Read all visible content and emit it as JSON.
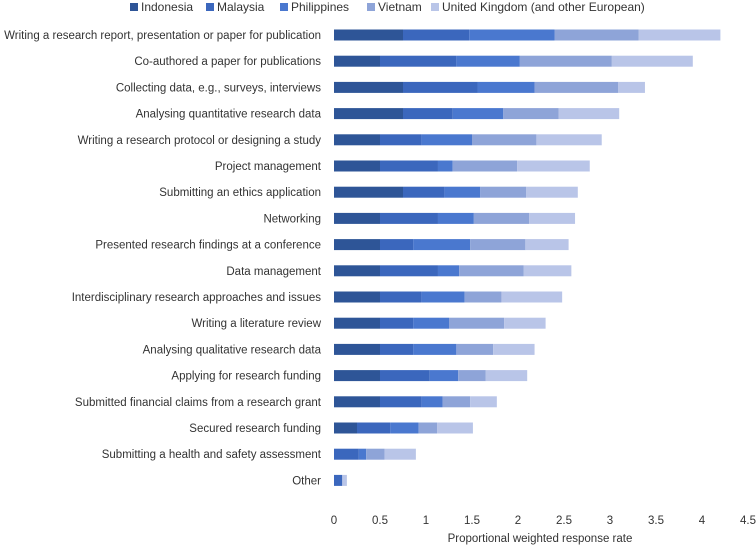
{
  "chart_data": {
    "type": "bar",
    "orientation": "horizontal",
    "stacked": true,
    "title": "",
    "xlabel": "Proportional weighted response rate",
    "ylabel": "",
    "xlim": [
      0,
      4.5
    ],
    "xticks": [
      "0",
      "0.5",
      "1",
      "1.5",
      "2",
      "2.5",
      "3",
      "3.5",
      "4",
      "4.5"
    ],
    "grid": false,
    "legend_position": "top",
    "categories": [
      "Writing a research report, presentation or paper for publication",
      "Co-authored a paper for publications",
      "Collecting data, e.g., surveys, interviews",
      "Analysing quantitative research data",
      "Writing a research protocol or designing a study",
      "Project management",
      "Submitting an ethics application",
      "Networking",
      "Presented research findings at a conference",
      "Data management",
      "Interdisciplinary research approaches and issues",
      "Writing a literature review",
      "Analysing qualitative research data",
      "Applying for research funding",
      "Submitted financial claims from a research grant",
      "Secured research funding",
      "Submitting a health and safety assessment",
      "Other"
    ],
    "series": [
      {
        "name": "Indonesia",
        "color": "#2e5597",
        "values": [
          0.75,
          0.5,
          0.75,
          0.75,
          0.5,
          0.5,
          0.75,
          0.5,
          0.5,
          0.5,
          0.5,
          0.5,
          0.5,
          0.5,
          0.5,
          0.25,
          0.0,
          0.0
        ]
      },
      {
        "name": "Malaysia",
        "color": "#3b67bd",
        "values": [
          0.72,
          0.83,
          0.81,
          0.54,
          0.45,
          0.63,
          0.45,
          0.63,
          0.36,
          0.63,
          0.45,
          0.36,
          0.36,
          0.54,
          0.45,
          0.36,
          0.27,
          0.09
        ]
      },
      {
        "name": "Philippines",
        "color": "#4a78cf",
        "values": [
          0.93,
          0.69,
          0.62,
          0.55,
          0.55,
          0.16,
          0.39,
          0.39,
          0.62,
          0.23,
          0.47,
          0.39,
          0.47,
          0.31,
          0.23,
          0.31,
          0.08,
          0.0
        ]
      },
      {
        "name": "Vietnam",
        "color": "#8ea4d8",
        "values": [
          0.91,
          1.0,
          0.91,
          0.6,
          0.7,
          0.7,
          0.5,
          0.6,
          0.6,
          0.7,
          0.4,
          0.6,
          0.4,
          0.3,
          0.3,
          0.2,
          0.2,
          0.0
        ]
      },
      {
        "name": "United Kingdom (and other European)",
        "color": "#b9c5e8",
        "values": [
          0.89,
          0.88,
          0.29,
          0.66,
          0.71,
          0.79,
          0.56,
          0.5,
          0.47,
          0.52,
          0.66,
          0.45,
          0.45,
          0.45,
          0.29,
          0.39,
          0.34,
          0.05
        ]
      }
    ]
  }
}
